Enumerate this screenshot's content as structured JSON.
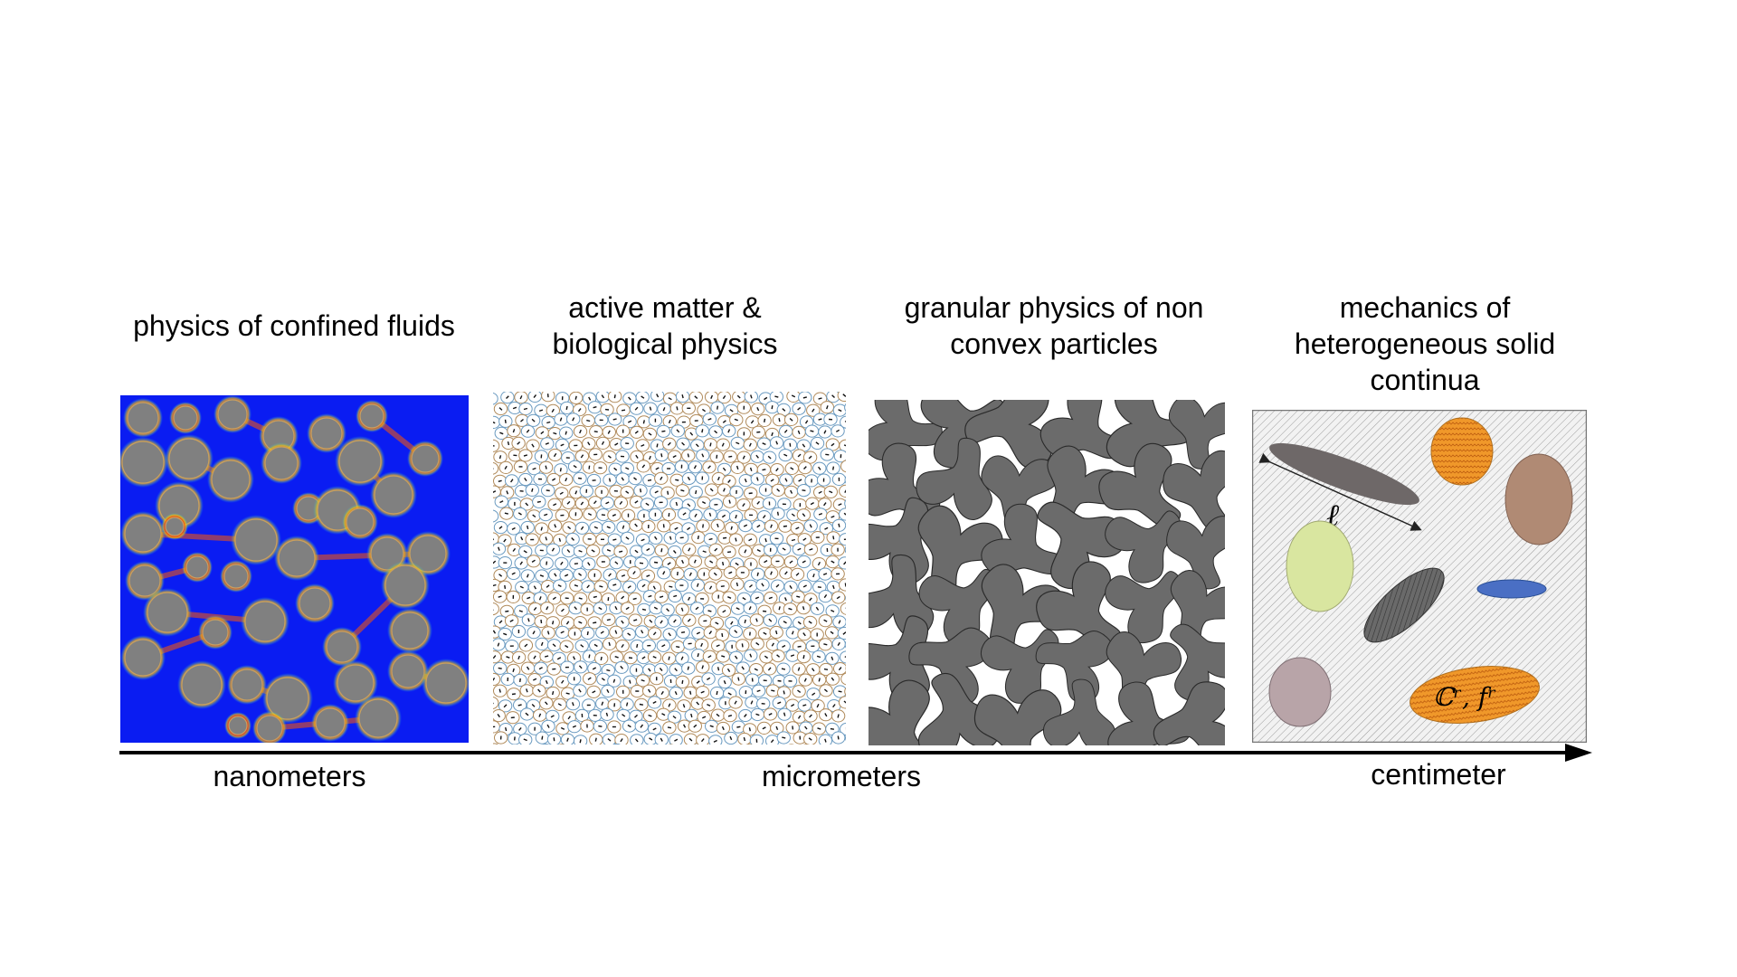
{
  "panels": [
    {
      "title_lines": [
        "physics of confined fluids"
      ]
    },
    {
      "title_lines": [
        "active matter &",
        "biological physics"
      ]
    },
    {
      "title_lines": [
        "granular physics of non",
        "convex particles"
      ]
    },
    {
      "title_lines": [
        "mechanics of",
        "heterogeneous solid",
        "continua"
      ]
    }
  ],
  "scale_labels": {
    "left": "nanometers",
    "middle": "micrometers",
    "right": "centimeter"
  },
  "annotations": {
    "length_symbol": "ℓ",
    "property_label": "ℂʳ, fʳ"
  },
  "colors": {
    "fluid_background": "#0a1cf2",
    "particle_gray": "#808080",
    "granular_gray": "#6b6b6b",
    "axis": "#000000",
    "inclusion_orange": "#f0982a",
    "inclusion_brown": "#b08a74",
    "inclusion_green": "#d9e6a0",
    "inclusion_blue": "#4a6fc4",
    "inclusion_mauve": "#b8a4a8"
  }
}
